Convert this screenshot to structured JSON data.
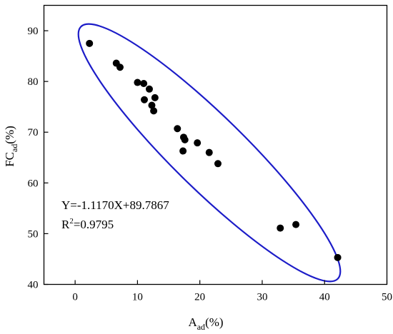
{
  "chart_data": {
    "type": "scatter",
    "x_label": {
      "main": "A",
      "sub": "ad",
      "unit": "(%)"
    },
    "y_label": {
      "main": "FC",
      "sub": "ad",
      "unit": "(%)"
    },
    "xlim": [
      -5,
      50
    ],
    "ylim": [
      40,
      95
    ],
    "x_ticks": [
      0,
      10,
      20,
      30,
      40,
      50
    ],
    "y_ticks": [
      40,
      50,
      60,
      70,
      80,
      90
    ],
    "grid": false,
    "series": [
      {
        "marker": "filled-circle",
        "color": "#000000",
        "points": [
          [
            2.3,
            87.5
          ],
          [
            6.6,
            83.6
          ],
          [
            7.2,
            82.8
          ],
          [
            10.0,
            79.8
          ],
          [
            11.0,
            79.6
          ],
          [
            11.9,
            78.5
          ],
          [
            12.8,
            76.8
          ],
          [
            11.1,
            76.4
          ],
          [
            12.3,
            75.3
          ],
          [
            12.6,
            74.2
          ],
          [
            16.4,
            70.7
          ],
          [
            17.4,
            69.0
          ],
          [
            17.6,
            68.5
          ],
          [
            19.6,
            67.9
          ],
          [
            17.3,
            66.3
          ],
          [
            21.5,
            66.0
          ],
          [
            22.9,
            63.8
          ],
          [
            32.9,
            51.1
          ],
          [
            35.4,
            51.8
          ],
          [
            42.1,
            45.3
          ]
        ]
      }
    ],
    "confidence_ellipse": {
      "color": "#1c1cc8"
    },
    "annotations": {
      "equation": "Y=-1.1170X+89.7867",
      "r2_prefix": "R",
      "r2_sup": "2",
      "r2_value": "=0.9795"
    }
  }
}
